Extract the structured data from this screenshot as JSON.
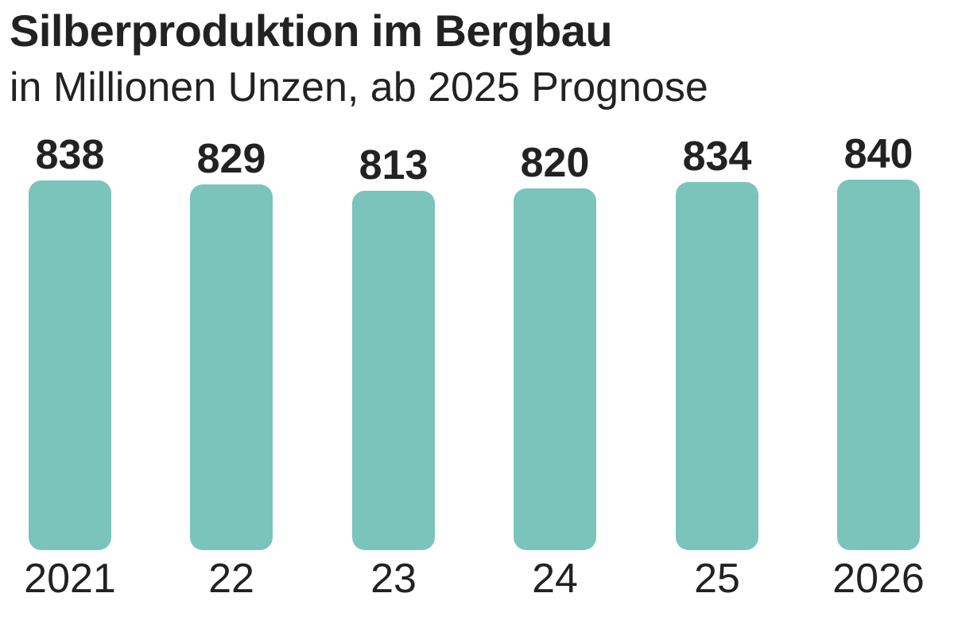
{
  "header": {
    "title": "Silberproduktion im Bergbau",
    "subtitle": "in Millionen Unzen, ab 2025 Prognose"
  },
  "chart_data": {
    "type": "bar",
    "title": "Silberproduktion im Bergbau",
    "subtitle": "in Millionen Unzen, ab 2025 Prognose",
    "categories": [
      "2021",
      "22",
      "23",
      "24",
      "25",
      "2026"
    ],
    "values": [
      838,
      829,
      813,
      820,
      834,
      840
    ],
    "value_labels": [
      "838",
      "829",
      "813",
      "820",
      "834",
      "840"
    ],
    "xlabel": "",
    "ylabel": "Millionen Unzen",
    "grid": false,
    "legend": null,
    "bar_color": "#7ac4bb",
    "text_color": "#222222"
  }
}
